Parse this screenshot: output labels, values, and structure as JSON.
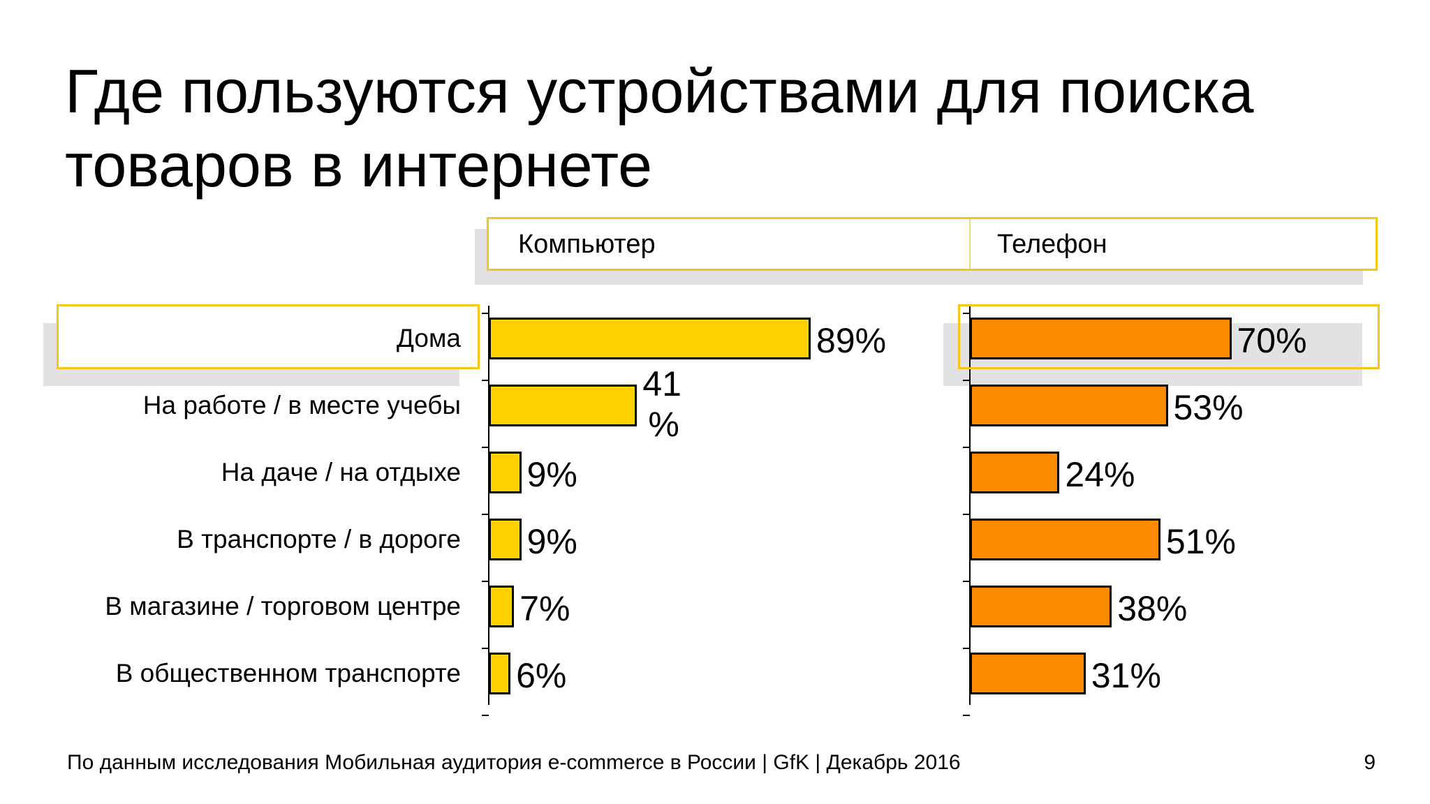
{
  "slide": {
    "title_line1": "Где пользуются устройствами для поиска",
    "title_line2": "товаров в интернете",
    "footer": "По данным исследования Мобильная аудитория e-commerce в России | GfK | Декабрь 2016",
    "page_number": "9"
  },
  "chart_data": {
    "type": "bar",
    "orientation": "horizontal",
    "categories": [
      "Дома",
      "На работе / в месте учебы",
      "На даче / на отдыхе",
      "В транспорте / в дороге",
      "В магазине / торговом центре",
      "В общественном транспорте"
    ],
    "series": [
      {
        "name": "Компьютер",
        "values": [
          89,
          41,
          9,
          9,
          7,
          6
        ],
        "labels": [
          "89%",
          "41\n%",
          "9%",
          "9%",
          "7%",
          "6%"
        ],
        "color": "#ffd200"
      },
      {
        "name": "Телефон",
        "values": [
          70,
          53,
          24,
          51,
          38,
          31
        ],
        "labels": [
          "70%",
          "53%",
          "24%",
          "51%",
          "38%",
          "31%"
        ],
        "color": "#fe8a00"
      }
    ],
    "highlighted_category": "Дома",
    "highlight_color": "#f6c515",
    "grid": false
  }
}
